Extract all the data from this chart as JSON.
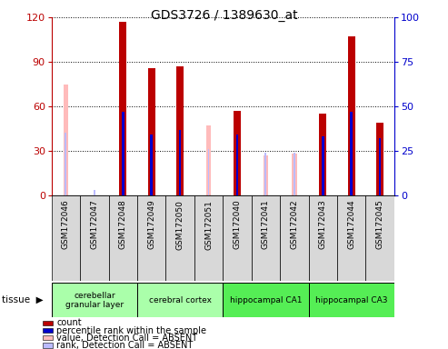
{
  "title": "GDS3726 / 1389630_at",
  "samples": [
    "GSM172046",
    "GSM172047",
    "GSM172048",
    "GSM172049",
    "GSM172050",
    "GSM172051",
    "GSM172040",
    "GSM172041",
    "GSM172042",
    "GSM172043",
    "GSM172044",
    "GSM172045"
  ],
  "count": [
    null,
    null,
    117,
    86,
    87,
    null,
    57,
    null,
    null,
    55,
    107,
    49
  ],
  "percentile_rank": [
    null,
    null,
    47,
    34,
    37,
    null,
    34,
    null,
    null,
    33,
    47,
    32
  ],
  "absent_value": [
    75,
    null,
    null,
    null,
    null,
    47,
    null,
    27,
    28,
    null,
    null,
    null
  ],
  "absent_rank": [
    35,
    3,
    null,
    null,
    null,
    26,
    null,
    24,
    24,
    null,
    null,
    null
  ],
  "tissue_groups": [
    {
      "label": "cerebellar\ngranular layer",
      "start": 0,
      "end": 3,
      "color": "#aaffaa"
    },
    {
      "label": "cerebral cortex",
      "start": 3,
      "end": 6,
      "color": "#aaffaa"
    },
    {
      "label": "hippocampal CA1",
      "start": 6,
      "end": 9,
      "color": "#55ee55"
    },
    {
      "label": "hippocampal CA3",
      "start": 9,
      "end": 12,
      "color": "#55ee55"
    }
  ],
  "ylim_left": [
    0,
    120
  ],
  "ylim_right": [
    0,
    100
  ],
  "yticks_left": [
    0,
    30,
    60,
    90,
    120
  ],
  "yticks_right": [
    0,
    25,
    50,
    75,
    100
  ],
  "color_count": "#bb0000",
  "color_rank": "#0000cc",
  "color_absent_value": "#ffbbbb",
  "color_absent_rank": "#bbbbff",
  "tissue_label": "tissue",
  "legend_items": [
    {
      "color": "#bb0000",
      "label": "count"
    },
    {
      "color": "#0000cc",
      "label": "percentile rank within the sample"
    },
    {
      "color": "#ffbbbb",
      "label": "value, Detection Call = ABSENT"
    },
    {
      "color": "#bbbbff",
      "label": "rank, Detection Call = ABSENT"
    }
  ]
}
